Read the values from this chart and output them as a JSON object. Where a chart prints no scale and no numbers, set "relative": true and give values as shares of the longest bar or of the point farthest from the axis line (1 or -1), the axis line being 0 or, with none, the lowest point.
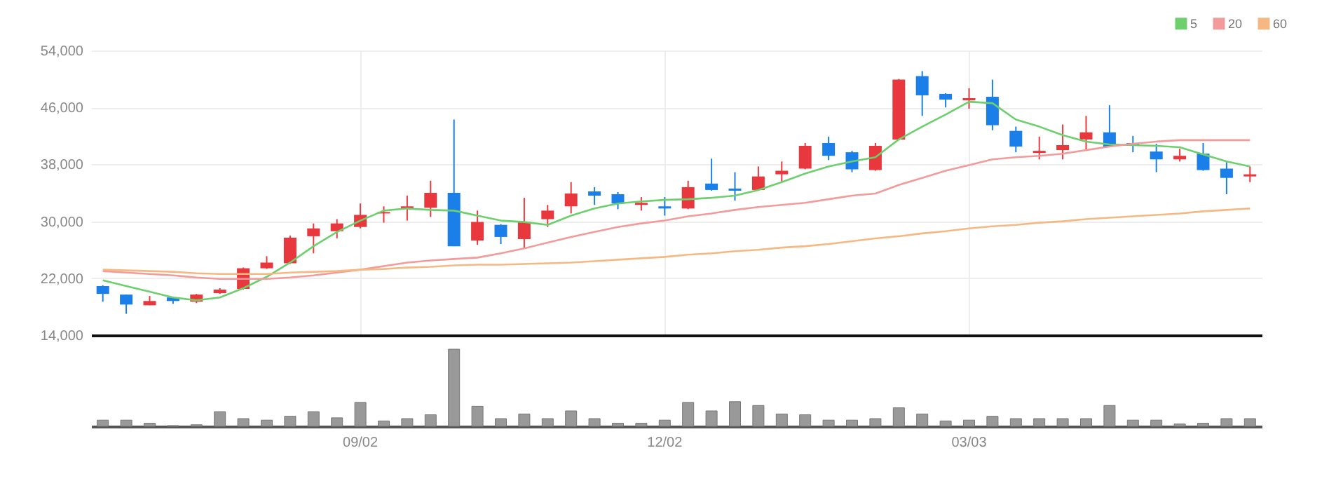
{
  "chart_data": [
    {
      "type": "candlestick",
      "categories": [
        null,
        null,
        null,
        null,
        null,
        null,
        null,
        null,
        null,
        null,
        null,
        null,
        null,
        null,
        null,
        null,
        null,
        null,
        null,
        null,
        null,
        null,
        null,
        null,
        null,
        null,
        null,
        null,
        null,
        null,
        null,
        null,
        null,
        null,
        null,
        null,
        null,
        null,
        null,
        null,
        null,
        null,
        null,
        null,
        null,
        null,
        null,
        null,
        null,
        null
      ],
      "ohlc": [
        [
          20900,
          21000,
          18700,
          19800
        ],
        [
          19700,
          19700,
          17000,
          18300
        ],
        [
          18200,
          19500,
          18200,
          18800
        ],
        [
          19300,
          19400,
          18400,
          18800
        ],
        [
          18700,
          19800,
          18500,
          19700
        ],
        [
          19900,
          20600,
          19800,
          20400
        ],
        [
          20500,
          23500,
          20400,
          23400
        ],
        [
          23400,
          25100,
          23300,
          24200
        ],
        [
          24100,
          28000,
          24000,
          27700
        ],
        [
          27900,
          29700,
          25500,
          29000
        ],
        [
          28600,
          30300,
          27600,
          29700
        ],
        [
          29200,
          32500,
          29000,
          30900
        ],
        [
          31100,
          32100,
          29800,
          31300
        ],
        [
          31800,
          33600,
          30100,
          32100
        ],
        [
          31900,
          35700,
          30600,
          34000
        ],
        [
          34000,
          44300,
          26500,
          26500
        ],
        [
          27300,
          31500,
          26700,
          29900
        ],
        [
          29500,
          29600,
          26800,
          27800
        ],
        [
          27500,
          33300,
          26200,
          29900
        ],
        [
          30300,
          32300,
          29200,
          31500
        ],
        [
          32100,
          35500,
          31100,
          33900
        ],
        [
          34200,
          34800,
          32300,
          33600
        ],
        [
          33800,
          34100,
          31700,
          32500
        ],
        [
          32300,
          33400,
          31500,
          32600
        ],
        [
          32100,
          33400,
          30800,
          31800
        ],
        [
          31800,
          35700,
          31700,
          34800
        ],
        [
          35300,
          38800,
          34300,
          34400
        ],
        [
          34600,
          36900,
          32900,
          34300
        ],
        [
          34400,
          37700,
          34300,
          36300
        ],
        [
          36600,
          38400,
          35500,
          37100
        ],
        [
          37400,
          41000,
          37300,
          40600
        ],
        [
          41000,
          41900,
          38600,
          39200
        ],
        [
          39700,
          39900,
          36900,
          37300
        ],
        [
          37200,
          41000,
          37100,
          40600
        ],
        [
          41500,
          50000,
          41400,
          49900
        ],
        [
          50400,
          51100,
          44800,
          47700
        ],
        [
          47900,
          48000,
          46000,
          47100
        ],
        [
          47000,
          48700,
          45800,
          47300
        ],
        [
          47500,
          49900,
          42800,
          43500
        ],
        [
          42700,
          43300,
          39700,
          40500
        ],
        [
          39600,
          41900,
          38700,
          39900
        ],
        [
          40000,
          43600,
          38700,
          40700
        ],
        [
          41500,
          44800,
          40000,
          42500
        ],
        [
          42500,
          46300,
          40400,
          40500
        ],
        [
          41000,
          42000,
          39700,
          40700
        ],
        [
          39800,
          40900,
          36900,
          38700
        ],
        [
          38700,
          40200,
          38400,
          39200
        ],
        [
          39500,
          41000,
          37100,
          37200
        ],
        [
          37400,
          38300,
          33800,
          36100
        ],
        [
          36300,
          37700,
          35500,
          36600
        ]
      ],
      "colors": [
        "#1a7fe8",
        "#1a7fe8",
        "#e8383d",
        "#1a7fe8",
        "#e8383d",
        "#e8383d",
        "#e8383d",
        "#e8383d",
        "#e8383d",
        "#e8383d",
        "#e8383d",
        "#e8383d",
        "#e8383d",
        "#e8383d",
        "#e8383d",
        "#1a7fe8",
        "#e8383d",
        "#1a7fe8",
        "#e8383d",
        "#e8383d",
        "#e8383d",
        "#1a7fe8",
        "#1a7fe8",
        "#e8383d",
        "#1a7fe8",
        "#e8383d",
        "#1a7fe8",
        "#1a7fe8",
        "#e8383d",
        "#e8383d",
        "#e8383d",
        "#1a7fe8",
        "#1a7fe8",
        "#e8383d",
        "#e8383d",
        "#1a7fe8",
        "#1a7fe8",
        "#e8383d",
        "#1a7fe8",
        "#1a7fe8",
        "#e8383d",
        "#e8383d",
        "#e8383d",
        "#1a7fe8",
        "#1a7fe8",
        "#1a7fe8",
        "#e8383d",
        "#1a7fe8",
        "#1a7fe8",
        "#e8383d"
      ],
      "series": [
        {
          "name": "5",
          "type": "line",
          "color": "#6dcf6d",
          "values": [
            21700,
            20900,
            20100,
            19300,
            18900,
            19300,
            20600,
            22200,
            24200,
            26500,
            28500,
            30100,
            31500,
            31800,
            31600,
            31500,
            30800,
            30100,
            29900,
            29500,
            30800,
            31800,
            32500,
            32800,
            33000,
            33100,
            33300,
            33600,
            34400,
            35500,
            36700,
            37700,
            38400,
            39000,
            41500,
            43300,
            45000,
            46800,
            46600,
            44300,
            43300,
            42100,
            41200,
            40800,
            40700,
            40600,
            40400,
            39400,
            38400,
            37700
          ]
        },
        {
          "name": "20",
          "type": "line",
          "color": "#f39a9a",
          "values": [
            23000,
            22800,
            22600,
            22400,
            22100,
            21900,
            21900,
            21900,
            22100,
            22400,
            22800,
            23200,
            23700,
            24200,
            24500,
            24700,
            24900,
            25500,
            26200,
            27000,
            27800,
            28500,
            29200,
            29700,
            30100,
            30700,
            31100,
            31600,
            32000,
            32300,
            32600,
            33100,
            33600,
            33900,
            35100,
            36100,
            37100,
            37900,
            38700,
            39000,
            39200,
            39500,
            40000,
            40500,
            40900,
            41200,
            41400,
            41400,
            41400,
            41400
          ]
        },
        {
          "name": "60",
          "type": "line",
          "color": "#f6b882",
          "values": [
            23200,
            23100,
            23000,
            22900,
            22700,
            22600,
            22600,
            22600,
            22800,
            22900,
            23000,
            23200,
            23300,
            23500,
            23600,
            23800,
            23900,
            23900,
            24000,
            24100,
            24200,
            24400,
            24600,
            24800,
            25000,
            25300,
            25500,
            25800,
            26000,
            26300,
            26500,
            26800,
            27200,
            27600,
            27900,
            28300,
            28600,
            29000,
            29300,
            29500,
            29800,
            30000,
            30300,
            30500,
            30700,
            30900,
            31100,
            31400,
            31600,
            31800
          ]
        }
      ],
      "ylim": [
        14000,
        54000
      ],
      "yticks": [
        {
          "value": 14000,
          "label": "14,000"
        },
        {
          "value": 22000,
          "label": "22,000"
        },
        {
          "value": 30000,
          "label": "30,000"
        },
        {
          "value": 38000,
          "label": "38,000"
        },
        {
          "value": 46000,
          "label": "46,000"
        },
        {
          "value": 54000,
          "label": "54,000"
        }
      ],
      "grid": true,
      "legend": "top right",
      "tick_labels": "y"
    },
    {
      "type": "bar",
      "relative": true,
      "color": "#999999",
      "tick_labels": "x",
      "categories": [
        null,
        null,
        null,
        null,
        null,
        null,
        null,
        null,
        null,
        null,
        null,
        "09/02",
        null,
        null,
        null,
        null,
        null,
        null,
        null,
        null,
        null,
        null,
        null,
        null,
        "12/02",
        null,
        null,
        null,
        null,
        null,
        null,
        null,
        null,
        null,
        null,
        null,
        null,
        "03/03",
        null,
        null,
        null,
        null,
        null,
        null,
        null,
        null,
        null,
        null,
        null,
        null
      ],
      "values": [
        0.08,
        0.08,
        0.04,
        0.01,
        0.02,
        0.19,
        0.1,
        0.08,
        0.13,
        0.19,
        0.11,
        0.31,
        0.07,
        0.1,
        0.15,
        1,
        0.26,
        0.1,
        0.16,
        0.1,
        0.2,
        0.1,
        0.04,
        0.04,
        0.08,
        0.31,
        0.2,
        0.32,
        0.27,
        0.16,
        0.15,
        0.08,
        0.08,
        0.1,
        0.24,
        0.16,
        0.07,
        0.08,
        0.13,
        0.1,
        0.1,
        0.1,
        0.1,
        0.27,
        0.08,
        0.08,
        0.03,
        0.04,
        0.1,
        0.1
      ]
    }
  ]
}
